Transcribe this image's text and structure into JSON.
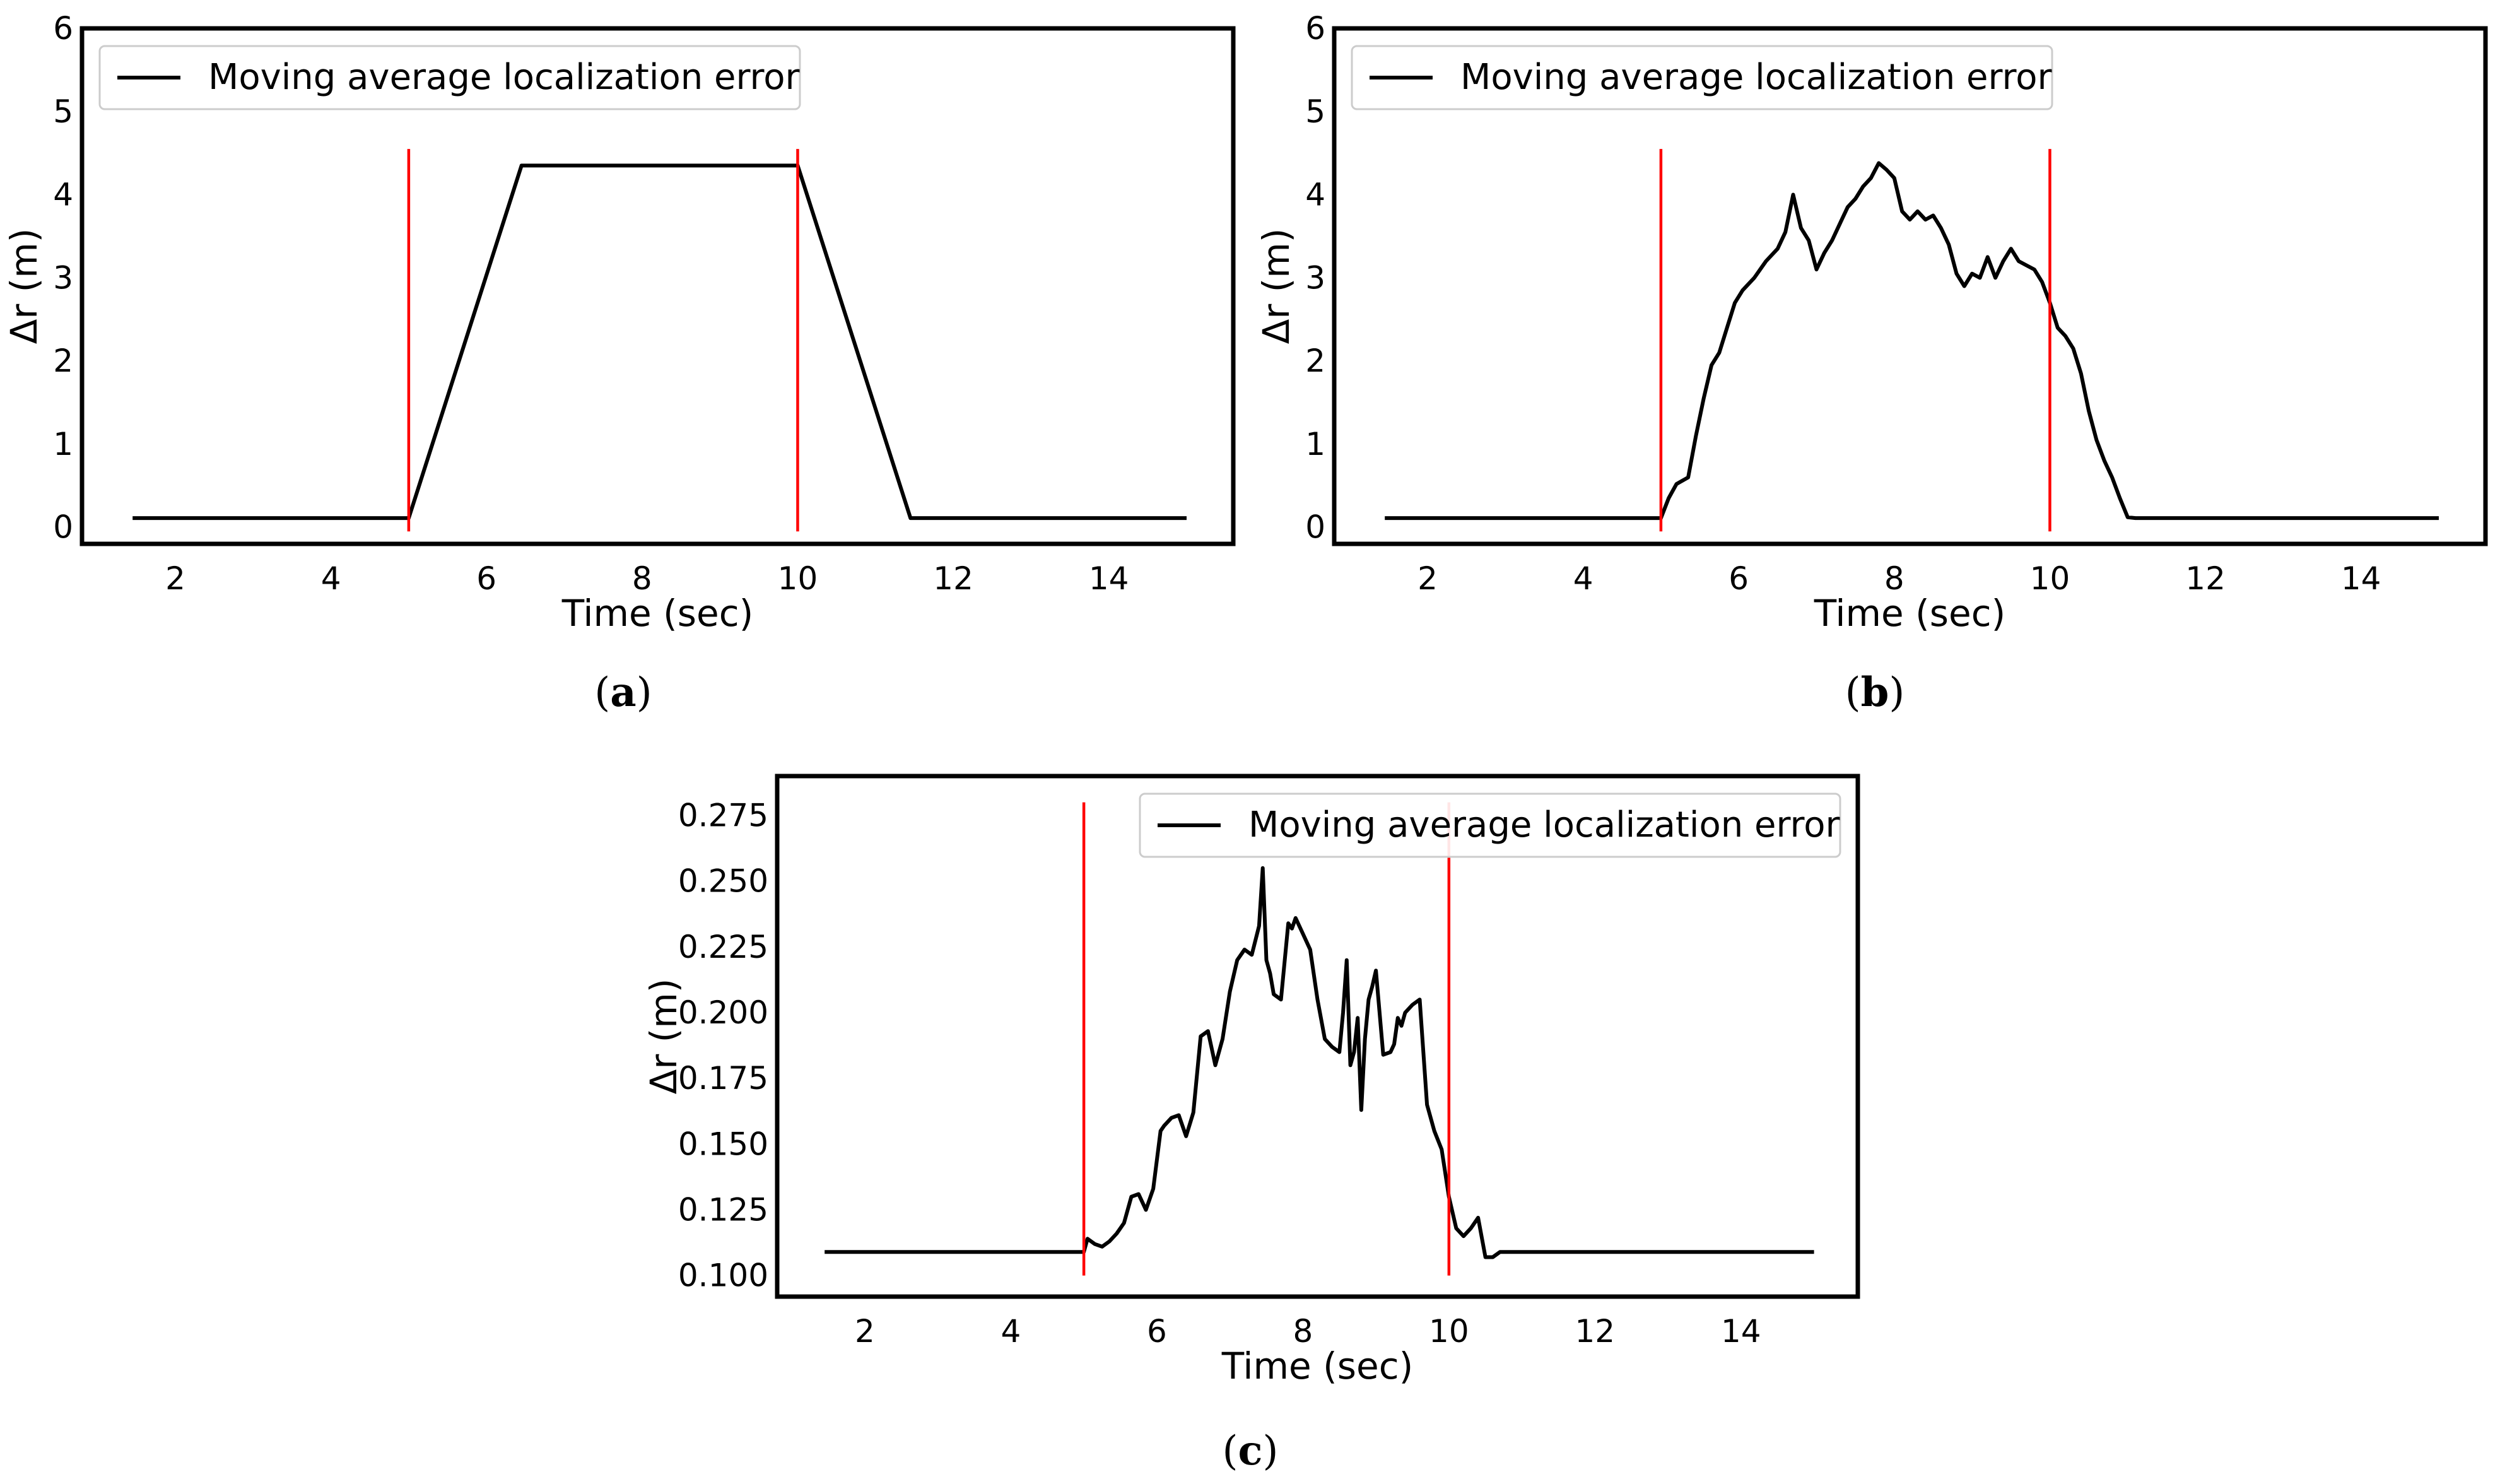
{
  "figure": {
    "captions": [
      "(a)",
      "(b)",
      "(c)"
    ],
    "caption_letters": [
      "a",
      "b",
      "c"
    ]
  },
  "colors": {
    "error_line": "#000000",
    "marker_line": "#ff0000",
    "axes": "#000000",
    "background": "#ffffff",
    "legend_border": "#cccccc"
  },
  "chart_data": [
    {
      "id": "a",
      "type": "line",
      "title": "",
      "xlabel": "Time (sec)",
      "ylabel": "Δr (m)",
      "xlim": [
        0.8,
        15.6
      ],
      "ylim": [
        -0.2,
        6.0
      ],
      "xticks": [
        2,
        4,
        6,
        8,
        10,
        12,
        14
      ],
      "yticks": [
        0,
        1,
        2,
        3,
        4,
        5,
        6
      ],
      "ytick_labels": [
        "0",
        "1",
        "2",
        "3",
        "4",
        "5",
        "6"
      ],
      "legend": "top-left",
      "grid": false,
      "series": [
        {
          "name": "Moving average localization error",
          "x": [
            1.45,
            5.0,
            6.45,
            10.0,
            11.45,
            15.0
          ],
          "y": [
            0.11,
            0.11,
            4.35,
            4.35,
            0.11,
            0.11
          ]
        }
      ],
      "vlines": [
        {
          "x": 5.0,
          "ymin": -0.05,
          "ymax": 4.55
        },
        {
          "x": 10.0,
          "ymin": -0.05,
          "ymax": 4.55
        }
      ]
    },
    {
      "id": "b",
      "type": "line",
      "title": "",
      "xlabel": "Time (sec)",
      "ylabel": "Δr (m)",
      "xlim": [
        0.8,
        15.6
      ],
      "ylim": [
        -0.2,
        6.0
      ],
      "xticks": [
        2,
        4,
        6,
        8,
        10,
        12,
        14
      ],
      "yticks": [
        0,
        1,
        2,
        3,
        4,
        5,
        6
      ],
      "ytick_labels": [
        "0",
        "1",
        "2",
        "3",
        "4",
        "5",
        "6"
      ],
      "legend": "top-left",
      "grid": false,
      "series": [
        {
          "name": "Moving average localization error",
          "x": [
            1.45,
            5.0,
            5.1,
            5.2,
            5.35,
            5.45,
            5.55,
            5.65,
            5.75,
            5.85,
            5.95,
            6.05,
            6.2,
            6.35,
            6.5,
            6.6,
            6.7,
            6.8,
            6.9,
            7.0,
            7.1,
            7.2,
            7.3,
            7.4,
            7.5,
            7.6,
            7.7,
            7.8,
            7.9,
            8.0,
            8.1,
            8.2,
            8.3,
            8.4,
            8.5,
            8.6,
            8.7,
            8.8,
            8.9,
            9.0,
            9.1,
            9.2,
            9.3,
            9.4,
            9.5,
            9.6,
            9.7,
            9.8,
            9.9,
            10.0,
            10.1,
            10.2,
            10.3,
            10.4,
            10.5,
            10.6,
            10.7,
            10.8,
            10.9,
            11.0,
            11.1,
            11.2,
            11.3,
            11.4,
            11.5,
            15.0
          ],
          "y": [
            0.11,
            0.11,
            0.35,
            0.52,
            0.6,
            1.1,
            1.55,
            1.95,
            2.1,
            2.4,
            2.7,
            2.85,
            3.0,
            3.2,
            3.35,
            3.55,
            4.0,
            3.6,
            3.45,
            3.1,
            3.3,
            3.45,
            3.65,
            3.85,
            3.95,
            4.1,
            4.2,
            4.38,
            4.3,
            4.2,
            3.8,
            3.7,
            3.8,
            3.7,
            3.75,
            3.6,
            3.4,
            3.05,
            2.9,
            3.05,
            3.0,
            3.25,
            3.0,
            3.2,
            3.35,
            3.2,
            3.15,
            3.1,
            2.95,
            2.7,
            2.4,
            2.3,
            2.15,
            1.85,
            1.4,
            1.05,
            0.8,
            0.6,
            0.35,
            0.12,
            0.11,
            0.11,
            0.11,
            0.11,
            0.11,
            0.11
          ]
        }
      ],
      "vlines": [
        {
          "x": 5.0,
          "ymin": -0.05,
          "ymax": 4.55
        },
        {
          "x": 10.0,
          "ymin": -0.05,
          "ymax": 4.55
        }
      ]
    },
    {
      "id": "c",
      "type": "line",
      "title": "",
      "xlabel": "Time (sec)",
      "ylabel": "Δr (m)",
      "xlim": [
        0.8,
        15.6
      ],
      "ylim": [
        0.092,
        0.29
      ],
      "xticks": [
        2,
        4,
        6,
        8,
        10,
        12,
        14
      ],
      "yticks": [
        0.1,
        0.125,
        0.15,
        0.175,
        0.2,
        0.225,
        0.25,
        0.275
      ],
      "ytick_labels": [
        "0.100",
        "0.125",
        "0.150",
        "0.175",
        "0.200",
        "0.225",
        "0.250",
        "0.275"
      ],
      "legend": "top-right",
      "grid": false,
      "series": [
        {
          "name": "Moving average localization error",
          "x": [
            1.45,
            5.0,
            5.05,
            5.15,
            5.25,
            5.35,
            5.45,
            5.55,
            5.65,
            5.75,
            5.85,
            5.95,
            6.05,
            6.1,
            6.2,
            6.3,
            6.4,
            6.5,
            6.6,
            6.7,
            6.8,
            6.9,
            7.0,
            7.1,
            7.2,
            7.3,
            7.4,
            7.45,
            7.5,
            7.55,
            7.6,
            7.7,
            7.8,
            7.85,
            7.9,
            8.0,
            8.1,
            8.2,
            8.3,
            8.4,
            8.5,
            8.55,
            8.6,
            8.65,
            8.7,
            8.75,
            8.8,
            8.85,
            8.9,
            8.95,
            9.0,
            9.1,
            9.2,
            9.25,
            9.3,
            9.35,
            9.4,
            9.5,
            9.6,
            9.7,
            9.8,
            9.9,
            10.0,
            10.1,
            10.2,
            10.3,
            10.4,
            10.5,
            10.6,
            10.7,
            10.8,
            10.9,
            11.0,
            11.1,
            11.2,
            11.3,
            11.4,
            11.5,
            15.0
          ],
          "y": [
            0.109,
            0.109,
            0.114,
            0.112,
            0.111,
            0.113,
            0.116,
            0.12,
            0.13,
            0.131,
            0.125,
            0.133,
            0.155,
            0.157,
            0.16,
            0.161,
            0.153,
            0.162,
            0.191,
            0.193,
            0.18,
            0.19,
            0.208,
            0.22,
            0.224,
            0.222,
            0.233,
            0.255,
            0.22,
            0.215,
            0.207,
            0.205,
            0.234,
            0.232,
            0.236,
            0.23,
            0.224,
            0.205,
            0.19,
            0.187,
            0.185,
            0.2,
            0.22,
            0.18,
            0.185,
            0.198,
            0.163,
            0.19,
            0.205,
            0.21,
            0.216,
            0.184,
            0.185,
            0.188,
            0.198,
            0.195,
            0.2,
            0.203,
            0.205,
            0.165,
            0.155,
            0.148,
            0.13,
            0.118,
            0.115,
            0.118,
            0.122,
            0.107,
            0.107,
            0.109,
            0.109,
            0.109,
            0.109,
            0.109,
            0.109,
            0.109,
            0.109,
            0.109,
            0.109
          ],
          "x_fix": true
        }
      ],
      "vlines": [
        {
          "x": 5.0,
          "ymin": 0.1,
          "ymax": 0.28
        },
        {
          "x": 10.0,
          "ymin": 0.1,
          "ymax": 0.28
        }
      ]
    }
  ]
}
